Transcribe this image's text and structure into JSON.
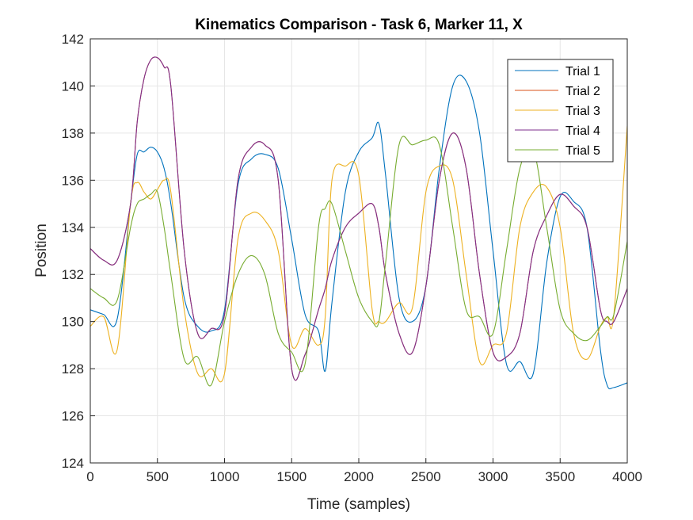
{
  "chart_data": {
    "type": "line",
    "title": "Kinematics Comparison - Task 6, Marker 11, X",
    "xlabel": "Time (samples)",
    "ylabel": "Position",
    "xlim": [
      0,
      4000
    ],
    "ylim": [
      124,
      142
    ],
    "xticks": [
      0,
      500,
      1000,
      1500,
      2000,
      2500,
      3000,
      3500,
      4000
    ],
    "yticks": [
      124,
      126,
      128,
      130,
      132,
      134,
      136,
      138,
      140,
      142
    ],
    "grid": true,
    "legend_position": "top-right",
    "x": [
      0,
      100,
      200,
      300,
      350,
      400,
      450,
      500,
      550,
      600,
      700,
      800,
      900,
      1000,
      1100,
      1200,
      1300,
      1400,
      1500,
      1600,
      1700,
      1750,
      1800,
      1900,
      2000,
      2100,
      2150,
      2200,
      2300,
      2400,
      2500,
      2600,
      2700,
      2800,
      2900,
      3000,
      3100,
      3200,
      3300,
      3400,
      3500,
      3600,
      3700,
      3800,
      3850,
      3900,
      4000
    ],
    "series": [
      {
        "name": "Trial 1",
        "color": "#0072BD",
        "values": [
          130.5,
          130.3,
          130.1,
          135.0,
          137.1,
          137.2,
          137.4,
          137.2,
          136.5,
          135.0,
          131.0,
          129.8,
          129.6,
          130.5,
          135.8,
          136.9,
          137.1,
          136.5,
          133.5,
          130.3,
          129.6,
          127.9,
          130.8,
          135.5,
          137.2,
          137.8,
          138.4,
          136.2,
          131.0,
          130.0,
          131.5,
          136.5,
          140.0,
          140.2,
          138.0,
          133.0,
          128.2,
          128.3,
          127.8,
          132.5,
          135.3,
          135.1,
          134.0,
          128.8,
          127.3,
          127.2,
          127.4
        ]
      },
      {
        "name": "Trial 2",
        "color": "#D95319",
        "values": [
          133.1,
          132.6,
          132.6,
          135.0,
          138.5,
          140.3,
          141.1,
          141.2,
          140.8,
          140.0,
          133.0,
          129.5,
          129.7,
          130.3,
          136.0,
          137.4,
          137.5,
          136.0,
          128.0,
          128.6,
          130.5,
          131.4,
          132.6,
          134.0,
          134.6,
          135.0,
          134.0,
          132.0,
          129.5,
          128.7,
          131.5,
          136.0,
          138.0,
          136.5,
          132.0,
          128.7,
          128.5,
          129.5,
          133.0,
          134.5,
          135.4,
          134.9,
          134.0,
          130.5,
          130.0,
          130.0,
          131.4
        ]
      },
      {
        "name": "Trial 3",
        "color": "#EDB120",
        "values": [
          129.8,
          130.2,
          128.8,
          135.0,
          135.9,
          135.5,
          135.2,
          135.6,
          136.0,
          135.5,
          130.5,
          127.8,
          128.0,
          127.8,
          133.5,
          134.6,
          134.3,
          133.0,
          129.0,
          129.7,
          129.0,
          130.2,
          136.0,
          136.6,
          136.2,
          130.5,
          130.0,
          130.0,
          130.8,
          130.6,
          135.5,
          136.6,
          136.0,
          132.0,
          128.3,
          129.0,
          129.5,
          134.0,
          135.5,
          135.7,
          134.0,
          129.5,
          128.4,
          129.8,
          130.2,
          130.3,
          138.3
        ]
      },
      {
        "name": "Trial 4",
        "color": "#7E2F8E",
        "values": [
          133.1,
          132.6,
          132.6,
          135.0,
          138.5,
          140.3,
          141.1,
          141.2,
          140.8,
          140.0,
          133.0,
          129.5,
          129.7,
          130.3,
          136.0,
          137.4,
          137.5,
          136.0,
          128.0,
          128.6,
          130.5,
          131.4,
          132.6,
          134.0,
          134.6,
          135.0,
          134.0,
          132.0,
          129.5,
          128.7,
          131.5,
          136.0,
          138.0,
          136.5,
          132.0,
          128.7,
          128.5,
          129.5,
          133.0,
          134.5,
          135.4,
          134.9,
          134.0,
          130.5,
          130.0,
          130.0,
          131.4
        ]
      },
      {
        "name": "Trial 5",
        "color": "#77AC30",
        "values": [
          131.4,
          131.0,
          130.9,
          134.0,
          135.0,
          135.2,
          135.4,
          135.5,
          134.0,
          132.0,
          128.4,
          128.5,
          127.3,
          130.0,
          132.0,
          132.8,
          132.0,
          129.5,
          128.7,
          128.2,
          134.0,
          134.8,
          135.0,
          133.0,
          131.0,
          130.0,
          130.0,
          132.5,
          137.5,
          137.5,
          137.7,
          137.5,
          134.0,
          130.5,
          130.2,
          129.5,
          133.0,
          136.5,
          137.3,
          134.0,
          130.5,
          129.5,
          129.2,
          129.8,
          130.2,
          130.3,
          133.4
        ]
      }
    ]
  }
}
